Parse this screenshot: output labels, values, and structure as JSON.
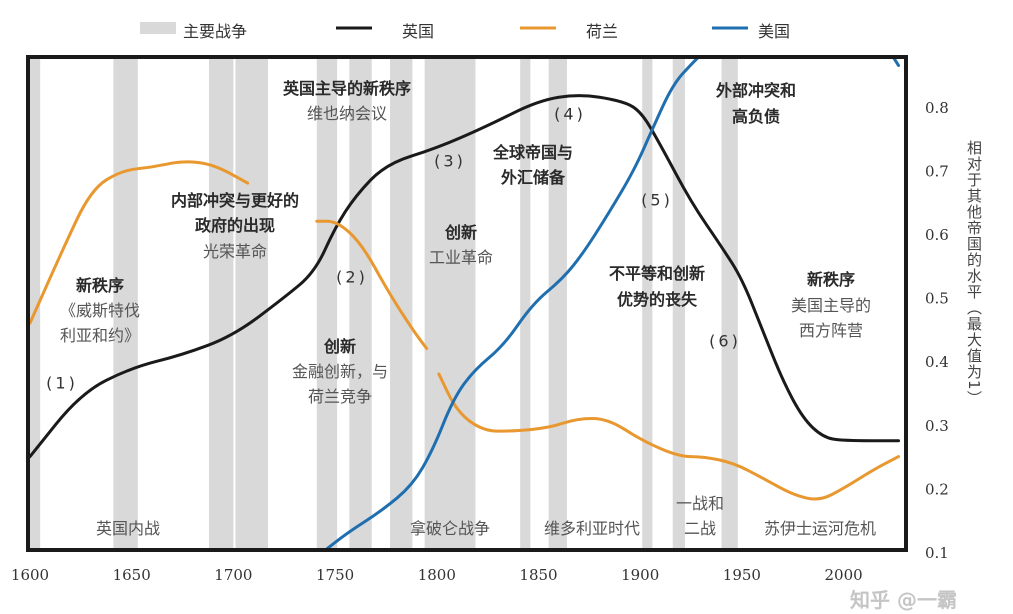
{
  "chart_data": {
    "type": "line",
    "title": "",
    "xlabel": "",
    "ylabel": "相对于其他帝国的水平（最大值为1）",
    "xlim": [
      1600,
      2032
    ],
    "ylim": [
      0.1,
      0.88
    ],
    "x_ticks": [
      "1600",
      "1650",
      "1700",
      "1750",
      "1800",
      "1850",
      "1900",
      "1950",
      "2000"
    ],
    "y_ticks": [
      "0.1",
      "0.2",
      "0.3",
      "0.4",
      "0.5",
      "0.6",
      "0.7",
      "0.8"
    ],
    "grid": false,
    "legend_position": "top",
    "legend": {
      "wars": "主要战争",
      "britain": "英国",
      "netherlands": "荷兰",
      "usa": "美国"
    },
    "colors": {
      "wars": "#d9d9d9",
      "britain": "#1a1a1a",
      "netherlands": "#e8982e",
      "usa": "#1f6fb0"
    },
    "war_periods": [
      [
        1600,
        1605
      ],
      [
        1641,
        1653
      ],
      [
        1688,
        1700
      ],
      [
        1701,
        1717
      ],
      [
        1741,
        1751
      ],
      [
        1757,
        1768
      ],
      [
        1777,
        1788
      ],
      [
        1794,
        1819
      ],
      [
        1841,
        1846
      ],
      [
        1855,
        1864
      ],
      [
        1901,
        1906
      ],
      [
        1916,
        1922
      ],
      [
        1940,
        1948
      ]
    ],
    "series": [
      {
        "name": "英国",
        "key": "britain",
        "segments": [
          [
            [
              1600,
              0.25
            ],
            [
              1625,
              0.35
            ],
            [
              1650,
              0.39
            ],
            [
              1675,
              0.41
            ],
            [
              1700,
              0.44
            ],
            [
              1725,
              0.5
            ],
            [
              1740,
              0.54
            ],
            [
              1750,
              0.61
            ],
            [
              1760,
              0.66
            ],
            [
              1775,
              0.71
            ],
            [
              1800,
              0.735
            ],
            [
              1825,
              0.77
            ],
            [
              1850,
              0.81
            ],
            [
              1870,
              0.82
            ],
            [
              1890,
              0.81
            ],
            [
              1900,
              0.795
            ],
            [
              1910,
              0.74
            ],
            [
              1925,
              0.65
            ],
            [
              1940,
              0.58
            ],
            [
              1950,
              0.53
            ],
            [
              1960,
              0.45
            ],
            [
              1970,
              0.37
            ],
            [
              1980,
              0.31
            ],
            [
              1990,
              0.28
            ],
            [
              2000,
              0.275
            ],
            [
              2027,
              0.275
            ]
          ]
        ]
      },
      {
        "name": "荷兰",
        "key": "netherlands",
        "segments": [
          [
            [
              1600,
              0.46
            ],
            [
              1616,
              0.575
            ],
            [
              1630,
              0.67
            ],
            [
              1645,
              0.7
            ],
            [
              1660,
              0.705
            ],
            [
              1675,
              0.715
            ],
            [
              1690,
              0.71
            ],
            [
              1707,
              0.68
            ]
          ],
          [
            [
              1741,
              0.62
            ],
            [
              1751,
              0.62
            ],
            [
              1763,
              0.585
            ],
            [
              1776,
              0.51
            ],
            [
              1788,
              0.45
            ],
            [
              1795,
              0.42
            ]
          ],
          [
            [
              1801,
              0.38
            ],
            [
              1810,
              0.32
            ],
            [
              1823,
              0.29
            ],
            [
              1837,
              0.29
            ],
            [
              1855,
              0.295
            ],
            [
              1869,
              0.31
            ],
            [
              1884,
              0.31
            ],
            [
              1901,
              0.275
            ],
            [
              1919,
              0.25
            ],
            [
              1931,
              0.25
            ],
            [
              1946,
              0.24
            ],
            [
              1961,
              0.215
            ],
            [
              1975,
              0.19
            ],
            [
              1988,
              0.18
            ],
            [
              2000,
              0.2
            ],
            [
              2015,
              0.23
            ],
            [
              2027,
              0.25
            ]
          ]
        ]
      },
      {
        "name": "美国",
        "key": "usa",
        "segments": [
          [
            [
              1744,
              0.1
            ],
            [
              1756,
              0.13
            ],
            [
              1773,
              0.165
            ],
            [
              1788,
              0.205
            ],
            [
              1798,
              0.26
            ],
            [
              1808,
              0.34
            ],
            [
              1818,
              0.385
            ],
            [
              1833,
              0.425
            ],
            [
              1847,
              0.49
            ],
            [
              1862,
              0.53
            ],
            [
              1872,
              0.57
            ],
            [
              1884,
              0.63
            ],
            [
              1897,
              0.7
            ],
            [
              1906,
              0.765
            ],
            [
              1916,
              0.835
            ],
            [
              1926,
              0.87
            ],
            [
              1931,
              0.885
            ]
          ],
          [
            [
              2023,
              0.885
            ],
            [
              2027,
              0.865
            ]
          ]
        ]
      }
    ],
    "annotations": {
      "a1_title": "英国主导的新秩序",
      "a1_sub": "维也纳会议",
      "a2_l1": "内部冲突与更好的",
      "a2_l2": "政府的出现",
      "a2_sub": "光荣革命",
      "a3_title": "新秩序",
      "a3_l1": "《威斯特伐",
      "a3_l2": "利亚和约》",
      "a4_title": "创新",
      "a4_l1": "金融创新，与",
      "a4_l2": "荷兰竞争",
      "a5_l1": "全球帝国与",
      "a5_l2": "外汇储备",
      "a6_title": "创新",
      "a6_sub": "工业革命",
      "a7_l1": "外部冲突和",
      "a7_l2": "高负债",
      "a8_l1": "不平等和创新",
      "a8_l2": "优势的丧失",
      "a9_title": "新秩序",
      "a9_l1": "美国主导的",
      "a9_l2": "西方阵营",
      "n1": "(1)",
      "n2": "(2)",
      "n3": "(3)",
      "n4": "(4)",
      "n5": "(5)",
      "n6": "(6)",
      "e1": "英国内战",
      "e2": "拿破仑战争",
      "e3": "维多利亚时代",
      "e4_l1": "一战和",
      "e4_l2": "二战",
      "e5": "苏伊士运河危机"
    }
  },
  "watermark": "知乎 @一霸"
}
